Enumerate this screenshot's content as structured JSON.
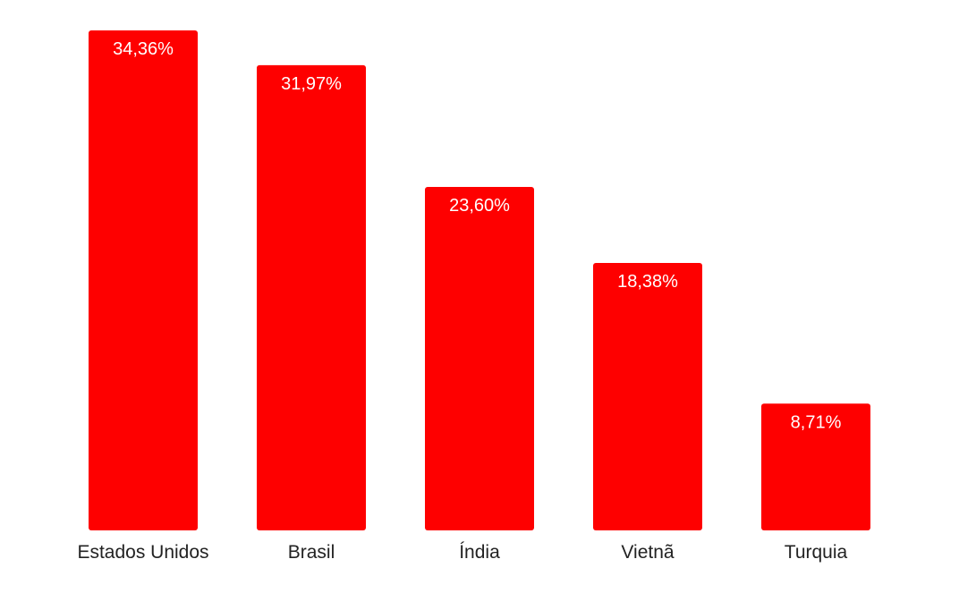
{
  "colors": {
    "bar": "#fe0000",
    "background": "#ffffff",
    "label_text": "#ffffff",
    "category_text": "#222222"
  },
  "chart_data": {
    "type": "bar",
    "categories": [
      "Estados Unidos",
      "Brasil",
      "Índia",
      "Vietnã",
      "Turquia"
    ],
    "values": [
      34.36,
      31.97,
      23.6,
      18.38,
      8.71
    ],
    "data_labels": [
      "34,36%",
      "31,97%",
      "23,60%",
      "18,38%",
      "8,71%"
    ],
    "ylim": [
      0,
      34.36
    ],
    "grid": false,
    "legend": "none"
  }
}
